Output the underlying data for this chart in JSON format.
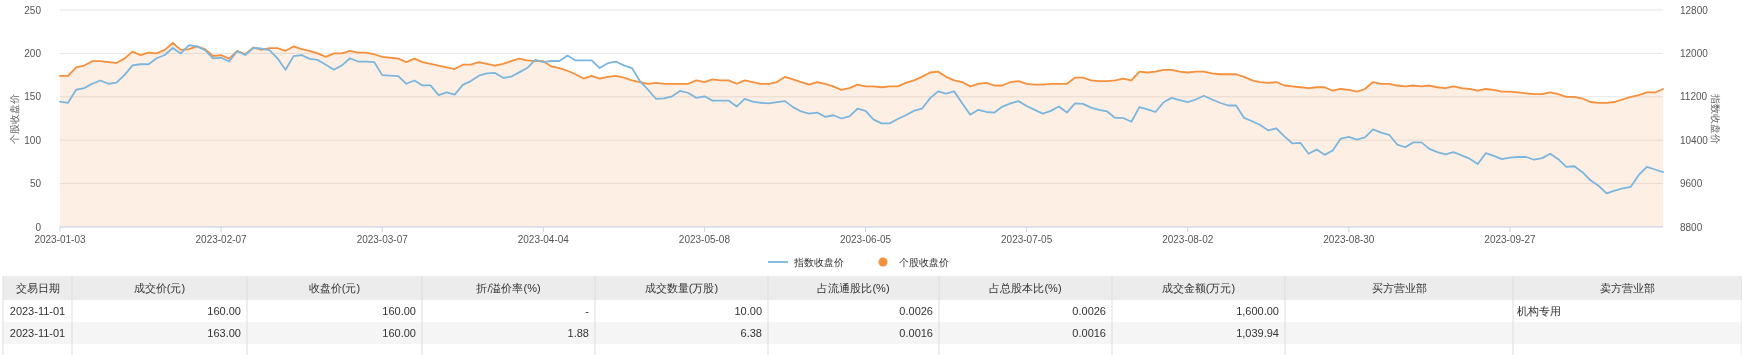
{
  "chart_data": [
    {
      "type": "line",
      "ylabel": "个股收盘价",
      "y2label": "指数收盘价",
      "ylim": [
        0,
        250
      ],
      "yticks": [
        0,
        50,
        100,
        150,
        200,
        250
      ],
      "y2lim": [
        8800,
        12800
      ],
      "y2ticks": [
        8800,
        9600,
        10400,
        11200,
        12000,
        12800
      ],
      "grid": "y",
      "legend": "bottom",
      "categories": [
        "2023-01-03",
        null,
        null,
        null,
        null,
        null,
        null,
        null,
        null,
        null,
        null,
        null,
        null,
        null,
        null,
        null,
        null,
        null,
        null,
        null,
        "2023-02-07",
        null,
        null,
        null,
        null,
        null,
        null,
        null,
        null,
        null,
        null,
        null,
        null,
        null,
        null,
        null,
        null,
        null,
        null,
        null,
        "2023-03-07",
        null,
        null,
        null,
        null,
        null,
        null,
        null,
        null,
        null,
        null,
        null,
        null,
        null,
        null,
        null,
        null,
        null,
        null,
        null,
        "2023-04-04",
        null,
        null,
        null,
        null,
        null,
        null,
        null,
        null,
        null,
        null,
        null,
        null,
        null,
        null,
        null,
        null,
        null,
        null,
        null,
        "2023-05-08",
        null,
        null,
        null,
        null,
        null,
        null,
        null,
        null,
        null,
        null,
        null,
        null,
        null,
        null,
        null,
        null,
        null,
        null,
        null,
        "2023-06-05",
        null,
        null,
        null,
        null,
        null,
        null,
        null,
        null,
        null,
        null,
        null,
        null,
        null,
        null,
        null,
        null,
        null,
        null,
        null,
        "2023-07-05",
        null,
        null,
        null,
        null,
        null,
        null,
        null,
        null,
        null,
        null,
        null,
        null,
        null,
        null,
        null,
        null,
        null,
        null,
        null,
        "2023-08-02",
        null,
        null,
        null,
        null,
        null,
        null,
        null,
        null,
        null,
        null,
        null,
        null,
        null,
        null,
        null,
        null,
        null,
        null,
        null,
        "2023-08-30",
        null,
        null,
        null,
        null,
        null,
        null,
        null,
        null,
        null,
        null,
        null,
        null,
        null,
        null,
        null,
        null,
        null,
        null,
        null,
        "2023-09-27",
        null,
        null,
        null,
        null,
        null,
        null,
        null,
        null,
        null,
        null,
        null,
        null,
        null,
        null,
        null,
        null,
        null,
        null,
        null
      ],
      "series": [
        {
          "name": "指数收盘价",
          "type": "line",
          "axis": "y2",
          "color": "#7ab6de",
          "values": [
            11110,
            11090,
            11330,
            11360,
            11440,
            11500,
            11440,
            11460,
            11600,
            11780,
            11800,
            11800,
            11910,
            11970,
            12100,
            12000,
            12150,
            12130,
            12060,
            11910,
            11920,
            11850,
            12040,
            11970,
            12100,
            12090,
            12060,
            11910,
            11700,
            11950,
            11970,
            11900,
            11880,
            11790,
            11700,
            11780,
            11910,
            11850,
            11850,
            11840,
            11600,
            11590,
            11580,
            11440,
            11500,
            11410,
            11410,
            11230,
            11280,
            11240,
            11420,
            11490,
            11590,
            11630,
            11640,
            11550,
            11570,
            11650,
            11730,
            11880,
            11840,
            11860,
            11860,
            11960,
            11870,
            11870,
            11870,
            11730,
            11820,
            11850,
            11780,
            11730,
            11490,
            11330,
            11160,
            11170,
            11210,
            11310,
            11270,
            11180,
            11210,
            11130,
            11130,
            11130,
            11020,
            11160,
            11110,
            11090,
            11080,
            11100,
            11120,
            11010,
            10930,
            10890,
            10910,
            10830,
            10860,
            10800,
            10840,
            10980,
            10940,
            10780,
            10710,
            10710,
            10790,
            10860,
            10940,
            10980,
            11170,
            11300,
            11260,
            11300,
            11080,
            10870,
            10960,
            10920,
            10910,
            11020,
            11080,
            11120,
            11030,
            10960,
            10890,
            10940,
            11020,
            10910,
            11080,
            11070,
            11000,
            10960,
            10930,
            10810,
            10810,
            10740,
            11010,
            10970,
            10920,
            11100,
            11180,
            11140,
            11100,
            11150,
            11220,
            11150,
            11090,
            11040,
            11040,
            10810,
            10750,
            10680,
            10580,
            10620,
            10470,
            10340,
            10350,
            10150,
            10230,
            10130,
            10210,
            10430,
            10460,
            10410,
            10450,
            10600,
            10540,
            10500,
            10320,
            10270,
            10360,
            10360,
            10240,
            10180,
            10140,
            10180,
            10120,
            10060,
            9960,
            10160,
            10110,
            10050,
            10080,
            10090,
            10090,
            10040,
            10070,
            10150,
            10050,
            9910,
            9920,
            9810,
            9660,
            9560,
            9420,
            9470,
            9510,
            9540,
            9760,
            9910,
            9860,
            9810
          ]
        },
        {
          "name": "个股收盘价",
          "type": "area",
          "color": "#f5903d",
          "values": [
            174,
            174,
            184,
            186,
            191,
            191,
            190,
            189,
            194,
            202,
            198,
            201,
            200,
            204,
            212,
            204,
            205,
            208,
            205,
            197,
            198,
            194,
            203,
            199,
            207,
            204,
            206,
            206,
            203,
            208,
            205,
            203,
            200,
            196,
            200,
            200,
            203,
            201,
            201,
            199,
            196,
            195,
            194,
            190,
            194,
            190,
            188,
            186,
            184,
            182,
            187,
            187,
            190,
            188,
            186,
            188,
            191,
            194,
            192,
            191,
            191,
            185,
            183,
            180,
            176,
            171,
            174,
            171,
            173,
            174,
            172,
            169,
            167,
            165,
            166,
            165,
            165,
            165,
            165,
            169,
            167,
            170,
            169,
            169,
            165,
            169,
            167,
            165,
            165,
            167,
            173,
            170,
            167,
            164,
            167,
            165,
            162,
            158,
            160,
            164,
            162,
            162,
            161,
            162,
            162,
            166,
            169,
            173,
            178,
            179,
            173,
            169,
            167,
            162,
            165,
            166,
            163,
            163,
            167,
            168,
            165,
            164,
            164,
            165,
            165,
            165,
            172,
            172,
            169,
            168,
            168,
            169,
            171,
            169,
            179,
            178,
            179,
            181,
            181,
            179,
            178,
            179,
            179,
            177,
            176,
            176,
            176,
            173,
            169,
            167,
            166,
            167,
            163,
            162,
            161,
            160,
            161,
            161,
            157,
            159,
            158,
            156,
            159,
            167,
            165,
            165,
            163,
            162,
            163,
            162,
            163,
            161,
            160,
            162,
            160,
            159,
            157,
            159,
            158,
            156,
            156,
            155,
            154,
            153,
            153,
            155,
            153,
            150,
            150,
            148,
            144,
            143,
            143,
            144,
            147,
            150,
            152,
            155,
            155,
            159
          ]
        }
      ]
    },
    {
      "type": "other",
      "categories": [
        "交易日期",
        "成交价(元)",
        "收盘价(元)",
        "折/溢价率(%)",
        "成交数量(万股)",
        "占流通股比(%)",
        "占总股本比(%)",
        "成交金额(万元)",
        "买方营业部",
        "卖方营业部"
      ],
      "cell_labels": [
        [
          "2023-11-01",
          "160.00",
          "160.00",
          "-",
          "10.00",
          "0.0026",
          "0.0026",
          "1,600.00",
          null,
          "机构专用"
        ],
        [
          "2023-11-01",
          "163.00",
          "160.00",
          "1.88",
          "6.38",
          "0.0016",
          "0.0016",
          "1,039.94",
          null,
          null
        ]
      ]
    }
  ]
}
